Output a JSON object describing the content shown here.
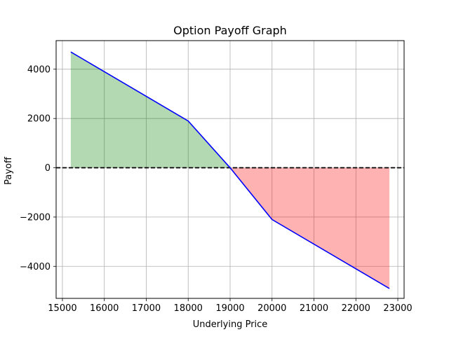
{
  "chart_data": {
    "type": "line",
    "title": "Option Payoff Graph",
    "xlabel": "Underlying Price",
    "ylabel": "Payoff",
    "xlim": [
      14850,
      23150
    ],
    "ylim": [
      -5300,
      5160
    ],
    "xticks": [
      15000,
      16000,
      17000,
      18000,
      19000,
      20000,
      21000,
      22000,
      23000
    ],
    "yticks": [
      -4000,
      -2000,
      0,
      2000,
      4000
    ],
    "grid": true,
    "zero_line": {
      "y": 0,
      "style": "dashed",
      "color": "#000000"
    },
    "series": [
      {
        "color": "#0000ff",
        "x": [
          15200,
          18000,
          19000,
          20000,
          22800
        ],
        "y": [
          4700,
          1900,
          0,
          -2100,
          -4900
        ]
      }
    ],
    "fills": [
      {
        "where": "payoff >= 0",
        "color": "#008000",
        "alpha": 0.3
      },
      {
        "where": "payoff < 0",
        "color": "#ff0000",
        "alpha": 0.3
      }
    ]
  }
}
